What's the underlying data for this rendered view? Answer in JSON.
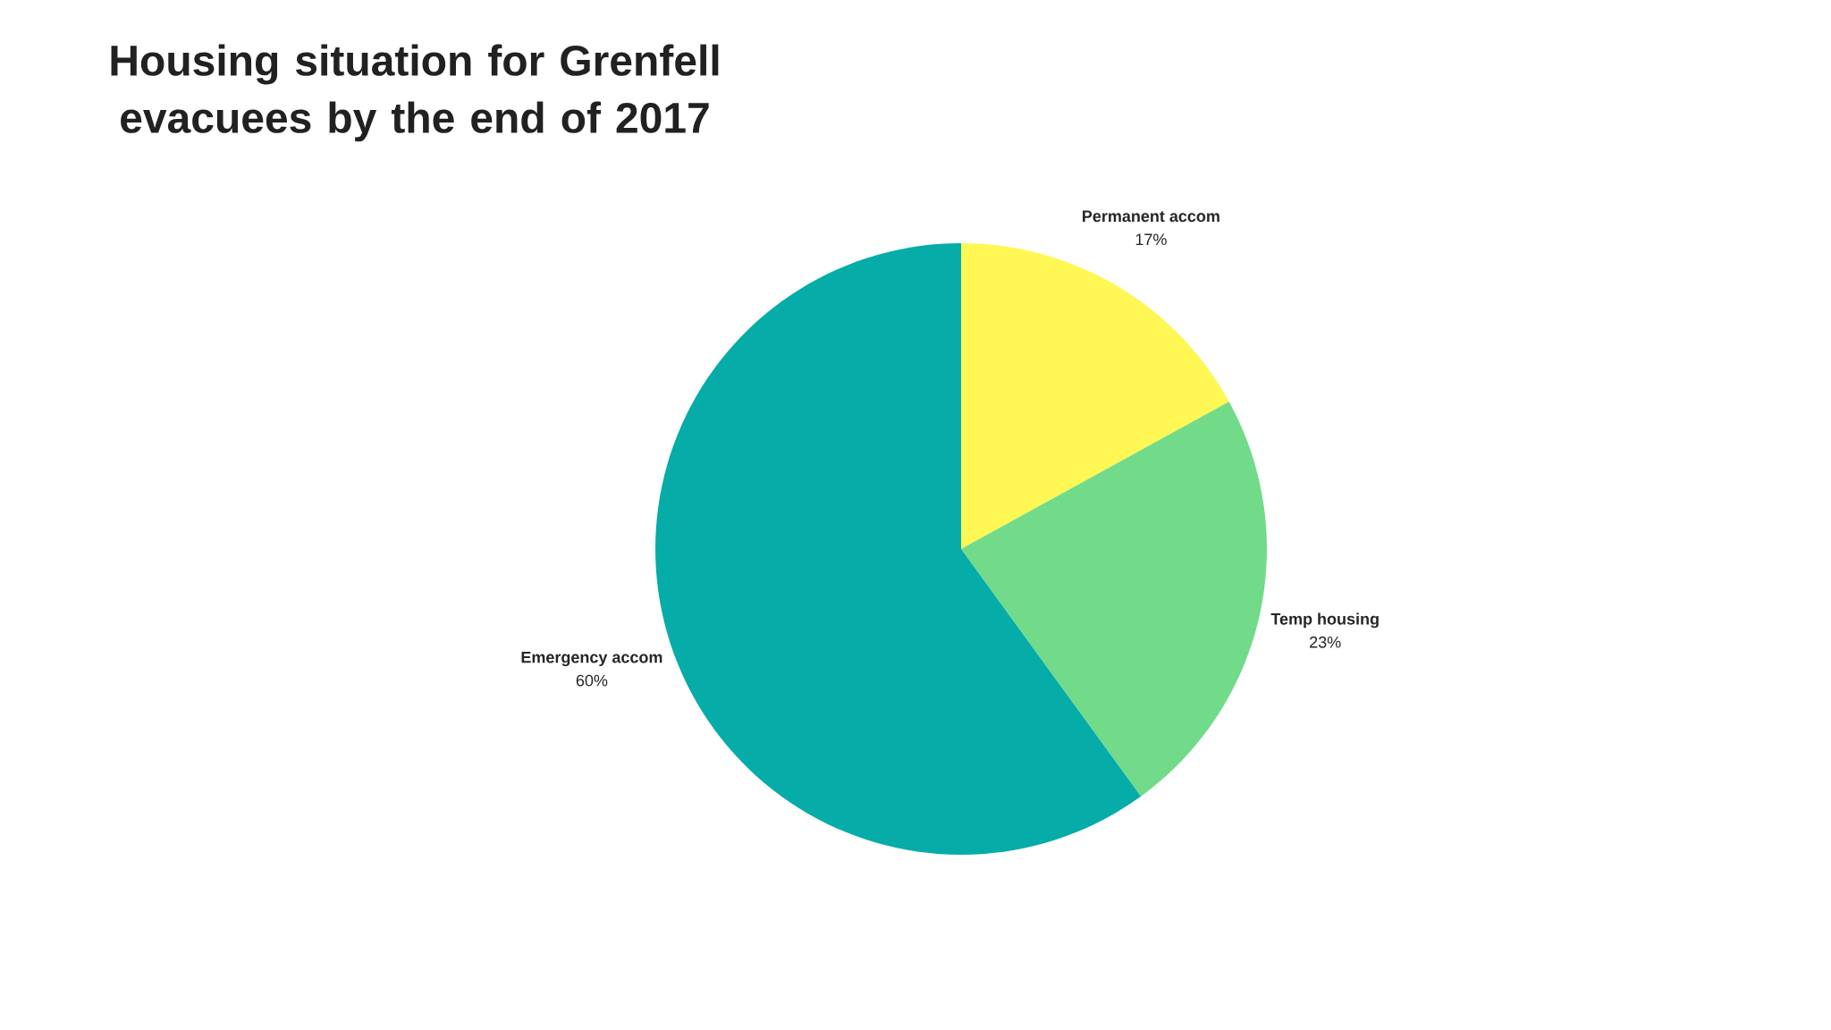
{
  "chart_data": {
    "type": "pie",
    "title": "Housing situation for Grenfell evacuees by the end of 2017",
    "categories": [
      "Permanent accom",
      "Temp housing",
      "Emergency accom"
    ],
    "values": [
      17,
      23,
      60
    ],
    "value_labels": [
      "17%",
      "23%",
      "60%"
    ],
    "colors": [
      "#fff753",
      "#71db8a",
      "#05aca8"
    ]
  }
}
